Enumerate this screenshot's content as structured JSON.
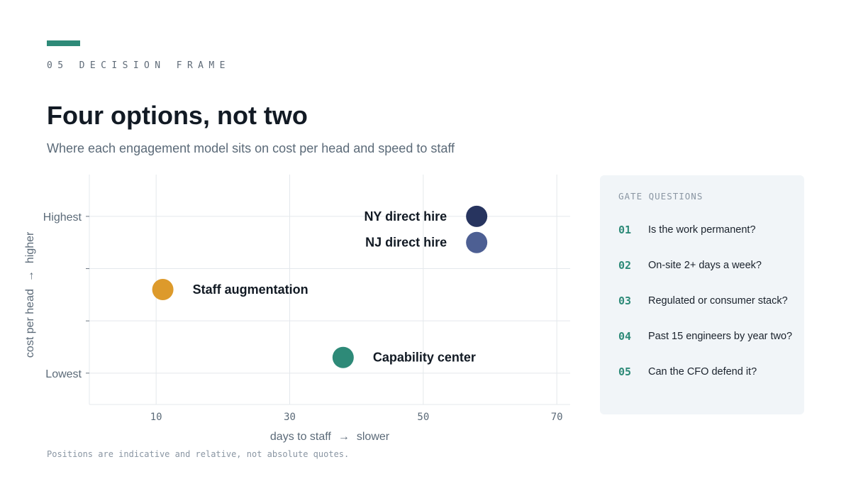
{
  "header": {
    "eyebrow": "05 DECISION FRAME",
    "title": "Four options, not two",
    "subtitle": "Where each engagement model sits on cost per head and speed to staff"
  },
  "colors": {
    "accent": "#2e8a78",
    "grid": "#e4e8ec",
    "axis_text": "#5b6a78",
    "label_text": "#121a24"
  },
  "chart_data": {
    "type": "scatter",
    "xlabel": "days to staff",
    "xlabel_direction": "slower",
    "ylabel": "cost per head",
    "ylabel_direction": "higher",
    "x_ticks": [
      10,
      30,
      50,
      70
    ],
    "xlim": [
      0,
      72
    ],
    "y_scale": "ordinal",
    "y_levels": [
      "Lowest",
      "",
      "",
      "Highest"
    ],
    "ylim": [
      -0.6,
      3.8
    ],
    "grid": true,
    "points": [
      {
        "label": "NY direct hire",
        "x": 58,
        "y": 3.0,
        "color": "#27345f",
        "label_side": "left"
      },
      {
        "label": "NJ direct hire",
        "x": 58,
        "y": 2.5,
        "color": "#4d5f93",
        "label_side": "left"
      },
      {
        "label": "Staff augmentation",
        "x": 11,
        "y": 1.6,
        "color": "#dd9a2b",
        "label_side": "right"
      },
      {
        "label": "Capability center",
        "x": 38,
        "y": 0.3,
        "color": "#2e8a78",
        "label_side": "right"
      }
    ]
  },
  "footnote": "Positions are indicative and relative, not absolute quotes.",
  "gate_questions": {
    "heading": "GATE QUESTIONS",
    "items": [
      {
        "num": "01",
        "text": "Is the work permanent?"
      },
      {
        "num": "02",
        "text": "On-site 2+ days a week?"
      },
      {
        "num": "03",
        "text": "Regulated or consumer stack?"
      },
      {
        "num": "04",
        "text": "Past 15 engineers by year two?"
      },
      {
        "num": "05",
        "text": "Can the CFO defend it?"
      }
    ]
  }
}
